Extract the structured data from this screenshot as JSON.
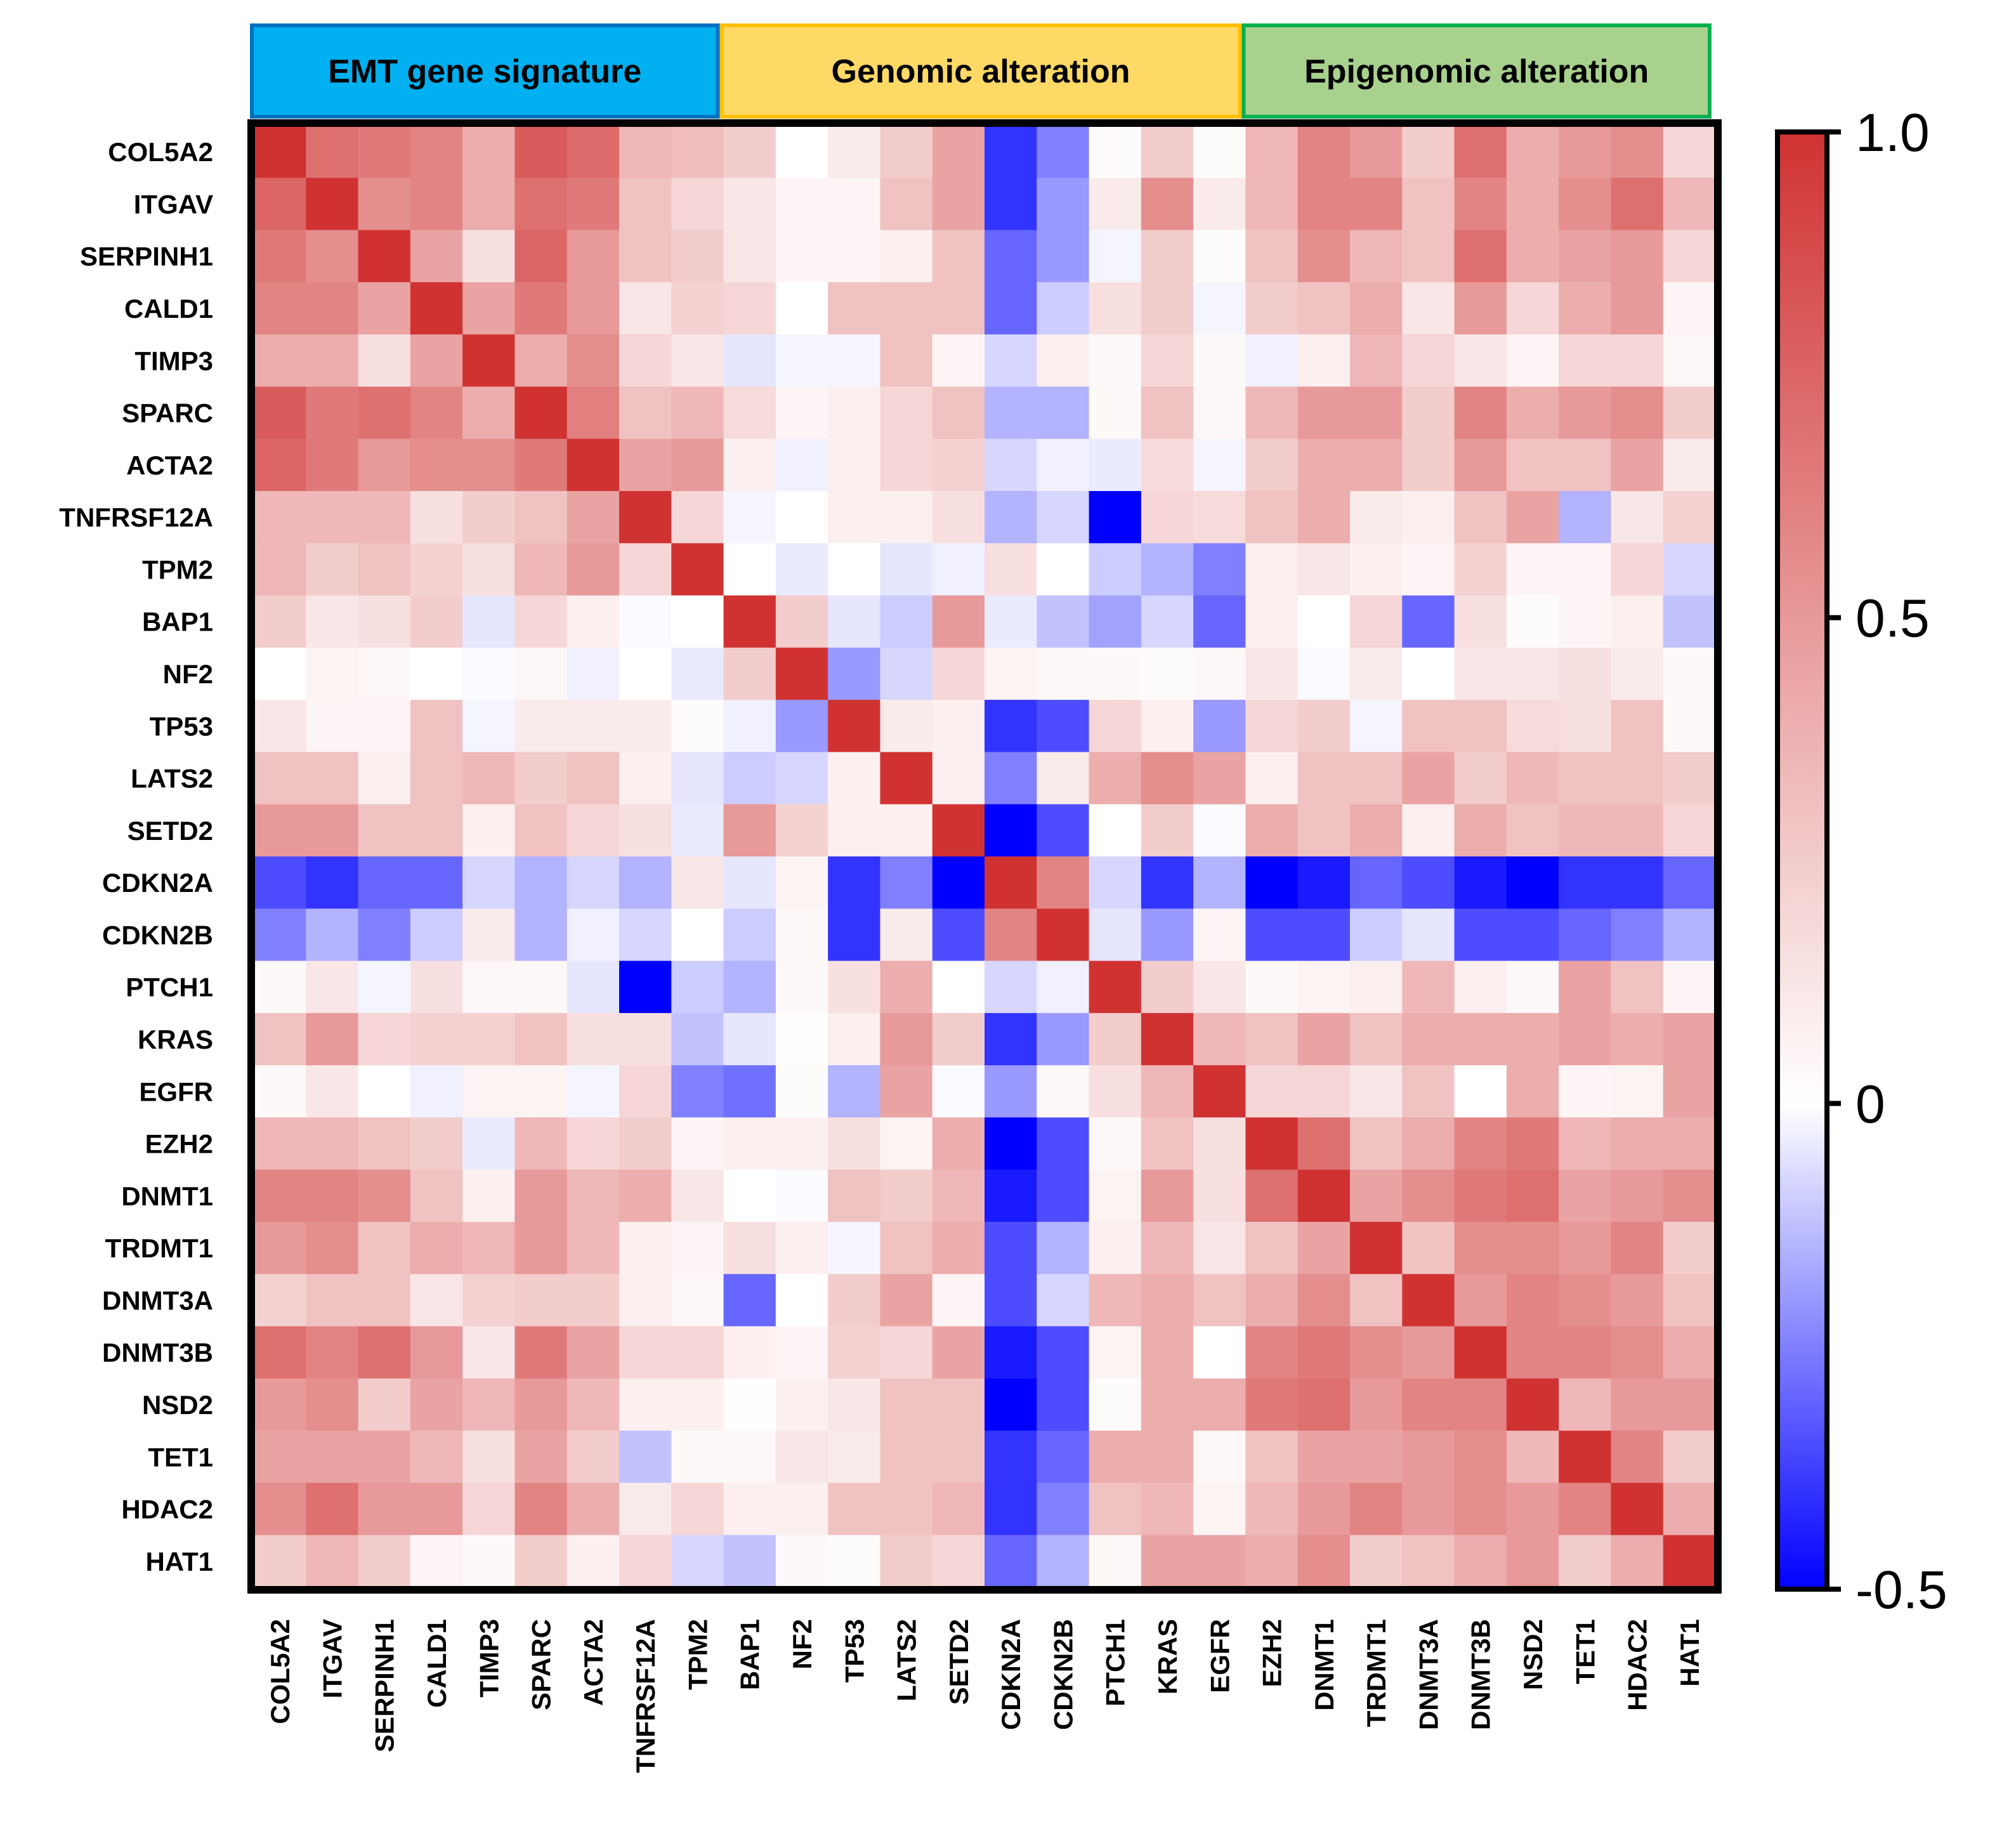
{
  "chart_data": {
    "type": "heatmap",
    "title": "",
    "groups": [
      {
        "label": "EMT gene signature",
        "fill": "#00B0F0",
        "border": "#0070C0",
        "genes": 9
      },
      {
        "label": "Genomic alteration",
        "fill": "#FFD966",
        "border": "#FFC000",
        "genes": 10
      },
      {
        "label": "Epigenomic alteration",
        "fill": "#A9D18E",
        "border": "#00B050",
        "genes": 9
      }
    ],
    "genes": [
      "COL5A2",
      "ITGAV",
      "SERPINH1",
      "CALD1",
      "TIMP3",
      "SPARC",
      "ACTA2",
      "TNFRSF12A",
      "TPM2",
      "BAP1",
      "NF2",
      "TP53",
      "LATS2",
      "SETD2",
      "CDKN2A",
      "CDKN2B",
      "PTCH1",
      "KRAS",
      "EGFR",
      "EZH2",
      "DNMT1",
      "TRDMT1",
      "DNMT3A",
      "DNMT3B",
      "NSD2",
      "TET1",
      "HDAC2",
      "HAT1"
    ],
    "values": [
      [
        1.0,
        0.7,
        0.65,
        0.6,
        0.4,
        0.8,
        0.72,
        0.35,
        0.32,
        0.25,
        0.0,
        0.1,
        0.25,
        0.45,
        -0.4,
        -0.25,
        0.02,
        0.25,
        0.02,
        0.35,
        0.6,
        0.5,
        0.25,
        0.7,
        0.4,
        0.5,
        0.55,
        0.2
      ],
      [
        0.75,
        1.0,
        0.55,
        0.6,
        0.4,
        0.7,
        0.65,
        0.3,
        0.2,
        0.12,
        0.05,
        0.05,
        0.3,
        0.45,
        -0.4,
        -0.2,
        0.1,
        0.55,
        0.1,
        0.35,
        0.6,
        0.6,
        0.3,
        0.6,
        0.4,
        0.55,
        0.7,
        0.35
      ],
      [
        0.65,
        0.55,
        1.0,
        0.45,
        0.15,
        0.75,
        0.5,
        0.3,
        0.25,
        0.12,
        0.05,
        0.05,
        0.08,
        0.3,
        -0.3,
        -0.2,
        -0.02,
        0.25,
        0.02,
        0.3,
        0.55,
        0.35,
        0.3,
        0.7,
        0.4,
        0.45,
        0.5,
        0.2
      ],
      [
        0.6,
        0.6,
        0.45,
        1.0,
        0.45,
        0.65,
        0.5,
        0.12,
        0.22,
        0.2,
        0.0,
        0.3,
        0.3,
        0.3,
        -0.3,
        -0.1,
        0.15,
        0.25,
        -0.02,
        0.25,
        0.3,
        0.4,
        0.12,
        0.5,
        0.2,
        0.4,
        0.5,
        0.05
      ],
      [
        0.4,
        0.4,
        0.15,
        0.45,
        1.0,
        0.4,
        0.55,
        0.2,
        0.12,
        -0.05,
        -0.02,
        -0.02,
        0.3,
        0.05,
        -0.08,
        0.08,
        0.03,
        0.2,
        0.03,
        -0.03,
        0.08,
        0.35,
        0.2,
        0.12,
        0.05,
        0.2,
        0.2,
        0.04
      ],
      [
        0.8,
        0.65,
        0.7,
        0.6,
        0.4,
        1.0,
        0.62,
        0.3,
        0.35,
        0.18,
        0.05,
        0.08,
        0.2,
        0.3,
        -0.15,
        -0.15,
        0.03,
        0.3,
        0.04,
        0.35,
        0.5,
        0.5,
        0.25,
        0.6,
        0.4,
        0.5,
        0.55,
        0.25
      ],
      [
        0.75,
        0.65,
        0.5,
        0.55,
        0.55,
        0.65,
        1.0,
        0.45,
        0.5,
        0.08,
        -0.03,
        0.08,
        0.2,
        0.22,
        -0.08,
        -0.03,
        -0.04,
        0.18,
        -0.02,
        0.25,
        0.4,
        0.4,
        0.25,
        0.5,
        0.3,
        0.3,
        0.45,
        0.1
      ],
      [
        0.35,
        0.35,
        0.35,
        0.15,
        0.25,
        0.3,
        0.45,
        1.0,
        0.2,
        -0.02,
        0.0,
        0.08,
        0.08,
        0.15,
        -0.15,
        -0.08,
        -0.5,
        0.2,
        0.18,
        0.3,
        0.4,
        0.1,
        0.08,
        0.3,
        0.45,
        -0.15,
        0.12,
        0.22
      ],
      [
        0.35,
        0.25,
        0.3,
        0.22,
        0.15,
        0.35,
        0.5,
        0.2,
        1.0,
        0.0,
        -0.04,
        0.0,
        -0.05,
        -0.03,
        0.15,
        0.0,
        -0.1,
        -0.15,
        -0.25,
        0.08,
        0.12,
        0.08,
        0.05,
        0.22,
        0.05,
        0.05,
        0.2,
        -0.08
      ],
      [
        0.25,
        0.12,
        0.15,
        0.25,
        -0.05,
        0.2,
        0.08,
        -0.01,
        0.0,
        1.0,
        0.25,
        -0.05,
        -0.1,
        0.5,
        -0.04,
        -0.12,
        -0.18,
        -0.08,
        -0.3,
        0.08,
        0.0,
        0.2,
        -0.3,
        0.15,
        0.02,
        0.05,
        0.08,
        -0.12
      ],
      [
        0.0,
        0.06,
        0.04,
        0.0,
        -0.01,
        0.04,
        -0.03,
        0.0,
        -0.04,
        0.25,
        1.0,
        -0.2,
        -0.08,
        0.2,
        0.06,
        0.04,
        0.03,
        0.02,
        0.04,
        0.12,
        -0.01,
        0.1,
        0.0,
        0.12,
        0.12,
        0.15,
        0.1,
        0.03
      ],
      [
        0.12,
        0.05,
        0.05,
        0.3,
        -0.02,
        0.1,
        0.1,
        0.1,
        0.02,
        -0.03,
        -0.2,
        1.0,
        0.1,
        0.08,
        -0.4,
        -0.35,
        0.2,
        0.08,
        -0.2,
        0.2,
        0.25,
        -0.02,
        0.3,
        0.3,
        0.18,
        0.15,
        0.3,
        0.03
      ],
      [
        0.3,
        0.3,
        0.08,
        0.3,
        0.35,
        0.25,
        0.3,
        0.08,
        -0.05,
        -0.1,
        -0.08,
        0.08,
        1.0,
        0.08,
        -0.25,
        0.1,
        0.4,
        0.55,
        0.45,
        0.08,
        0.3,
        0.3,
        0.45,
        0.25,
        0.35,
        0.3,
        0.3,
        0.25
      ],
      [
        0.5,
        0.5,
        0.3,
        0.3,
        0.08,
        0.3,
        0.2,
        0.15,
        -0.04,
        0.5,
        0.22,
        0.08,
        0.08,
        1.0,
        -0.5,
        -0.35,
        0.0,
        0.25,
        -0.01,
        0.4,
        0.3,
        0.4,
        0.08,
        0.4,
        0.3,
        0.35,
        0.35,
        0.2
      ],
      [
        -0.35,
        -0.4,
        -0.3,
        -0.3,
        -0.08,
        -0.15,
        -0.08,
        -0.15,
        0.12,
        -0.05,
        0.06,
        -0.4,
        -0.25,
        -0.5,
        1.0,
        0.6,
        -0.08,
        -0.4,
        -0.15,
        -0.5,
        -0.45,
        -0.3,
        -0.35,
        -0.45,
        -0.5,
        -0.4,
        -0.4,
        -0.3
      ],
      [
        -0.25,
        -0.15,
        -0.25,
        -0.1,
        0.1,
        -0.15,
        -0.03,
        -0.08,
        0.0,
        -0.1,
        0.04,
        -0.4,
        0.1,
        -0.35,
        0.6,
        1.0,
        -0.05,
        -0.2,
        0.05,
        -0.35,
        -0.35,
        -0.1,
        -0.05,
        -0.35,
        -0.35,
        -0.3,
        -0.25,
        -0.15
      ],
      [
        0.03,
        0.12,
        -0.02,
        0.15,
        0.04,
        0.04,
        -0.05,
        -0.5,
        -0.1,
        -0.15,
        0.03,
        0.15,
        0.4,
        0.0,
        -0.08,
        -0.03,
        1.0,
        0.25,
        0.12,
        0.03,
        0.06,
        0.08,
        0.35,
        0.08,
        0.03,
        0.45,
        0.3,
        0.05
      ],
      [
        0.3,
        0.5,
        0.2,
        0.22,
        0.22,
        0.3,
        0.15,
        0.15,
        -0.12,
        -0.05,
        0.01,
        0.08,
        0.5,
        0.25,
        -0.4,
        -0.2,
        0.25,
        1.0,
        0.35,
        0.3,
        0.45,
        0.3,
        0.4,
        0.4,
        0.4,
        0.45,
        0.4,
        0.45
      ],
      [
        0.03,
        0.12,
        0.0,
        -0.03,
        0.06,
        0.06,
        -0.02,
        0.2,
        -0.25,
        -0.28,
        0.02,
        -0.15,
        0.45,
        -0.01,
        -0.2,
        0.04,
        0.15,
        0.35,
        1.0,
        0.2,
        0.2,
        0.12,
        0.3,
        0.0,
        0.4,
        0.05,
        0.06,
        0.45
      ],
      [
        0.35,
        0.35,
        0.3,
        0.25,
        -0.04,
        0.35,
        0.2,
        0.25,
        0.05,
        0.08,
        0.08,
        0.15,
        0.06,
        0.4,
        -0.5,
        -0.35,
        0.03,
        0.3,
        0.15,
        1.0,
        0.7,
        0.3,
        0.4,
        0.6,
        0.65,
        0.35,
        0.4,
        0.4
      ],
      [
        0.6,
        0.6,
        0.55,
        0.3,
        0.08,
        0.5,
        0.35,
        0.4,
        0.12,
        0.0,
        -0.01,
        0.3,
        0.25,
        0.35,
        -0.45,
        -0.35,
        0.06,
        0.5,
        0.15,
        0.7,
        1.0,
        0.45,
        0.55,
        0.65,
        0.7,
        0.45,
        0.5,
        0.55
      ],
      [
        0.5,
        0.55,
        0.3,
        0.4,
        0.35,
        0.5,
        0.35,
        0.08,
        0.05,
        0.15,
        0.08,
        -0.02,
        0.3,
        0.4,
        -0.35,
        -0.15,
        0.08,
        0.35,
        0.12,
        0.3,
        0.45,
        1.0,
        0.3,
        0.55,
        0.55,
        0.5,
        0.6,
        0.25
      ],
      [
        0.22,
        0.3,
        0.3,
        0.12,
        0.22,
        0.25,
        0.25,
        0.08,
        0.04,
        -0.3,
        0.0,
        0.25,
        0.45,
        0.05,
        -0.35,
        -0.08,
        0.35,
        0.4,
        0.3,
        0.4,
        0.55,
        0.3,
        1.0,
        0.5,
        0.6,
        0.55,
        0.5,
        0.3
      ],
      [
        0.7,
        0.6,
        0.7,
        0.5,
        0.12,
        0.65,
        0.45,
        0.2,
        0.2,
        0.08,
        0.05,
        0.22,
        0.2,
        0.45,
        -0.45,
        -0.35,
        0.06,
        0.4,
        0.0,
        0.6,
        0.65,
        0.55,
        0.5,
        1.0,
        0.6,
        0.6,
        0.55,
        0.4
      ],
      [
        0.5,
        0.55,
        0.25,
        0.45,
        0.35,
        0.5,
        0.35,
        0.08,
        0.08,
        0.01,
        0.08,
        0.12,
        0.3,
        0.3,
        -0.5,
        -0.35,
        0.02,
        0.4,
        0.4,
        0.65,
        0.7,
        0.5,
        0.6,
        0.6,
        1.0,
        0.35,
        0.5,
        0.5
      ],
      [
        0.45,
        0.45,
        0.45,
        0.35,
        0.15,
        0.45,
        0.25,
        -0.12,
        0.03,
        0.04,
        0.12,
        0.1,
        0.3,
        0.3,
        -0.4,
        -0.3,
        0.4,
        0.4,
        0.04,
        0.3,
        0.45,
        0.45,
        0.5,
        0.55,
        0.35,
        1.0,
        0.6,
        0.25
      ],
      [
        0.55,
        0.7,
        0.5,
        0.5,
        0.2,
        0.6,
        0.4,
        0.1,
        0.2,
        0.08,
        0.08,
        0.3,
        0.3,
        0.35,
        -0.4,
        -0.25,
        0.3,
        0.35,
        0.06,
        0.35,
        0.5,
        0.6,
        0.5,
        0.55,
        0.5,
        0.6,
        1.0,
        0.4
      ],
      [
        0.25,
        0.35,
        0.25,
        0.05,
        0.03,
        0.25,
        0.08,
        0.2,
        -0.08,
        -0.12,
        0.03,
        0.02,
        0.25,
        0.2,
        -0.3,
        -0.15,
        0.04,
        0.45,
        0.45,
        0.4,
        0.55,
        0.25,
        0.3,
        0.4,
        0.5,
        0.25,
        0.4,
        1.0
      ]
    ],
    "colorbar": {
      "min": -0.5,
      "max": 1.0,
      "low_color": "#0000FF",
      "mid_color": "#FFFFFF",
      "high_color": "#D03232",
      "ticks": [
        1.0,
        0.5,
        0,
        -0.5
      ],
      "tick_labels": [
        "1.0",
        "0.5",
        "0",
        "-0.5"
      ]
    }
  }
}
